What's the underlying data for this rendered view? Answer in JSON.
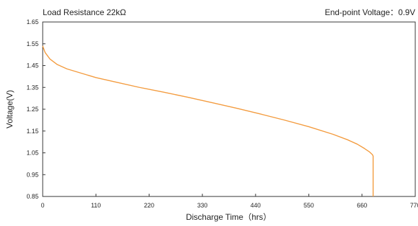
{
  "header": {
    "left_text": "Load Resistance 22kΩ",
    "right_text": "End-point Voltage：0.9V"
  },
  "chart_data": {
    "type": "line",
    "title": "",
    "xlabel": "Discharge Time（hrs）",
    "ylabel": "Voltage(V)",
    "xlim": [
      0,
      770
    ],
    "ylim": [
      0.85,
      1.65
    ],
    "xticks": [
      0,
      110,
      220,
      330,
      440,
      550,
      660,
      770
    ],
    "xtick_labels": [
      "0",
      "110",
      "220",
      "330",
      "440",
      "550",
      "660",
      "770"
    ],
    "yticks": [
      0.85,
      0.95,
      1.05,
      1.15,
      1.25,
      1.35,
      1.45,
      1.55,
      1.65
    ],
    "ytick_labels": [
      "0.85",
      "0.95",
      "1.05",
      "1.15",
      "1.25",
      "1.35",
      "1.45",
      "1.55",
      "1.65"
    ],
    "grid": false,
    "series": [
      {
        "color": "#f39a3c",
        "x": [
          0,
          5,
          15,
          30,
          50,
          80,
          110,
          150,
          200,
          250,
          300,
          350,
          400,
          450,
          500,
          550,
          600,
          630,
          650,
          665,
          675,
          680,
          682,
          683,
          683,
          683
        ],
        "y": [
          1.54,
          1.51,
          1.48,
          1.455,
          1.435,
          1.415,
          1.395,
          1.375,
          1.35,
          1.328,
          1.305,
          1.28,
          1.255,
          1.228,
          1.2,
          1.17,
          1.135,
          1.11,
          1.09,
          1.07,
          1.055,
          1.045,
          1.04,
          1.035,
          0.95,
          0.85
        ]
      }
    ]
  }
}
